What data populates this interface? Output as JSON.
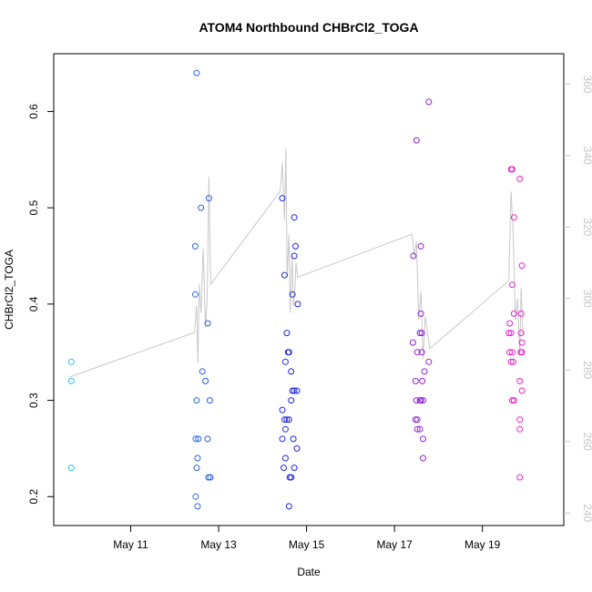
{
  "chart_data": {
    "type": "scatter",
    "title": "ATOM4 Northbound CHBrCl2_TOGA",
    "xlabel": "Date",
    "ylabel": "CHBrCl2_TOGA",
    "x_unit": "days since May 1",
    "xlim": [
      9.25,
      20.85
    ],
    "ylim": [
      0.17,
      0.66
    ],
    "y2lim": [
      236.5,
      368.5
    ],
    "x_ticks": [
      {
        "value": 11,
        "label": "May 11"
      },
      {
        "value": 13,
        "label": "May 13"
      },
      {
        "value": 15,
        "label": "May 15"
      },
      {
        "value": 17,
        "label": "May 17"
      },
      {
        "value": 19,
        "label": "May 19"
      }
    ],
    "y_ticks": [
      0.2,
      0.3,
      0.4,
      0.5,
      0.6
    ],
    "y2_ticks": [
      240,
      260,
      280,
      300,
      320,
      340,
      360
    ],
    "colors": {
      "start": "#33bbee",
      "mid": "#2222dd",
      "end": "#ee22cc",
      "line": "#c8c8c8",
      "right_axis": "#c4c4c4"
    },
    "series": [
      {
        "name": "CHBrCl2_TOGA",
        "points": [
          {
            "x": 9.65,
            "y": 0.34
          },
          {
            "x": 9.65,
            "y": 0.32
          },
          {
            "x": 9.65,
            "y": 0.23
          },
          {
            "x": 12.5,
            "y": 0.64
          },
          {
            "x": 12.47,
            "y": 0.46
          },
          {
            "x": 12.47,
            "y": 0.41
          },
          {
            "x": 12.6,
            "y": 0.5
          },
          {
            "x": 12.78,
            "y": 0.51
          },
          {
            "x": 12.75,
            "y": 0.38
          },
          {
            "x": 12.63,
            "y": 0.33
          },
          {
            "x": 12.7,
            "y": 0.32
          },
          {
            "x": 12.5,
            "y": 0.3
          },
          {
            "x": 12.8,
            "y": 0.3
          },
          {
            "x": 12.48,
            "y": 0.26
          },
          {
            "x": 12.54,
            "y": 0.26
          },
          {
            "x": 12.75,
            "y": 0.26
          },
          {
            "x": 12.52,
            "y": 0.24
          },
          {
            "x": 12.5,
            "y": 0.23
          },
          {
            "x": 12.77,
            "y": 0.22
          },
          {
            "x": 12.81,
            "y": 0.22
          },
          {
            "x": 12.48,
            "y": 0.2
          },
          {
            "x": 12.52,
            "y": 0.19
          },
          {
            "x": 14.45,
            "y": 0.51
          },
          {
            "x": 14.72,
            "y": 0.49
          },
          {
            "x": 14.75,
            "y": 0.46
          },
          {
            "x": 14.72,
            "y": 0.45
          },
          {
            "x": 14.5,
            "y": 0.43
          },
          {
            "x": 14.68,
            "y": 0.41
          },
          {
            "x": 14.8,
            "y": 0.4
          },
          {
            "x": 14.55,
            "y": 0.37
          },
          {
            "x": 14.58,
            "y": 0.35
          },
          {
            "x": 14.6,
            "y": 0.35
          },
          {
            "x": 14.52,
            "y": 0.34
          },
          {
            "x": 14.65,
            "y": 0.33
          },
          {
            "x": 14.68,
            "y": 0.31
          },
          {
            "x": 14.72,
            "y": 0.31
          },
          {
            "x": 14.78,
            "y": 0.31
          },
          {
            "x": 14.65,
            "y": 0.3
          },
          {
            "x": 14.45,
            "y": 0.29
          },
          {
            "x": 14.5,
            "y": 0.28
          },
          {
            "x": 14.55,
            "y": 0.28
          },
          {
            "x": 14.6,
            "y": 0.28
          },
          {
            "x": 14.52,
            "y": 0.27
          },
          {
            "x": 14.45,
            "y": 0.26
          },
          {
            "x": 14.7,
            "y": 0.26
          },
          {
            "x": 14.78,
            "y": 0.25
          },
          {
            "x": 14.52,
            "y": 0.24
          },
          {
            "x": 14.48,
            "y": 0.23
          },
          {
            "x": 14.72,
            "y": 0.23
          },
          {
            "x": 14.62,
            "y": 0.22
          },
          {
            "x": 14.65,
            "y": 0.22
          },
          {
            "x": 14.6,
            "y": 0.19
          },
          {
            "x": 17.78,
            "y": 0.61
          },
          {
            "x": 17.5,
            "y": 0.57
          },
          {
            "x": 17.6,
            "y": 0.46
          },
          {
            "x": 17.43,
            "y": 0.45
          },
          {
            "x": 17.6,
            "y": 0.39
          },
          {
            "x": 17.58,
            "y": 0.37
          },
          {
            "x": 17.62,
            "y": 0.37
          },
          {
            "x": 17.42,
            "y": 0.36
          },
          {
            "x": 17.52,
            "y": 0.35
          },
          {
            "x": 17.62,
            "y": 0.35
          },
          {
            "x": 17.78,
            "y": 0.34
          },
          {
            "x": 17.68,
            "y": 0.33
          },
          {
            "x": 17.48,
            "y": 0.32
          },
          {
            "x": 17.63,
            "y": 0.32
          },
          {
            "x": 17.5,
            "y": 0.3
          },
          {
            "x": 17.58,
            "y": 0.3
          },
          {
            "x": 17.6,
            "y": 0.3
          },
          {
            "x": 17.65,
            "y": 0.3
          },
          {
            "x": 17.48,
            "y": 0.28
          },
          {
            "x": 17.52,
            "y": 0.28
          },
          {
            "x": 17.52,
            "y": 0.27
          },
          {
            "x": 17.58,
            "y": 0.27
          },
          {
            "x": 17.65,
            "y": 0.26
          },
          {
            "x": 17.65,
            "y": 0.24
          },
          {
            "x": 19.65,
            "y": 0.54
          },
          {
            "x": 19.68,
            "y": 0.54
          },
          {
            "x": 19.85,
            "y": 0.53
          },
          {
            "x": 19.72,
            "y": 0.49
          },
          {
            "x": 19.9,
            "y": 0.44
          },
          {
            "x": 19.68,
            "y": 0.42
          },
          {
            "x": 19.72,
            "y": 0.39
          },
          {
            "x": 19.88,
            "y": 0.39
          },
          {
            "x": 19.62,
            "y": 0.38
          },
          {
            "x": 19.6,
            "y": 0.37
          },
          {
            "x": 19.65,
            "y": 0.37
          },
          {
            "x": 19.88,
            "y": 0.37
          },
          {
            "x": 19.9,
            "y": 0.36
          },
          {
            "x": 19.62,
            "y": 0.35
          },
          {
            "x": 19.68,
            "y": 0.35
          },
          {
            "x": 19.87,
            "y": 0.35
          },
          {
            "x": 19.9,
            "y": 0.35
          },
          {
            "x": 19.65,
            "y": 0.34
          },
          {
            "x": 19.7,
            "y": 0.34
          },
          {
            "x": 19.85,
            "y": 0.32
          },
          {
            "x": 19.9,
            "y": 0.31
          },
          {
            "x": 19.68,
            "y": 0.3
          },
          {
            "x": 19.72,
            "y": 0.3
          },
          {
            "x": 19.85,
            "y": 0.28
          },
          {
            "x": 19.85,
            "y": 0.27
          },
          {
            "x": 19.85,
            "y": 0.22
          }
        ]
      },
      {
        "name": "Right axis trace",
        "axis": "right",
        "points": [
          {
            "x": 9.6,
            "y": 278.0
          },
          {
            "x": 12.45,
            "y": 290.5
          },
          {
            "x": 12.5,
            "y": 298.0
          },
          {
            "x": 12.53,
            "y": 282.0
          },
          {
            "x": 12.56,
            "y": 304.0
          },
          {
            "x": 12.6,
            "y": 296.0
          },
          {
            "x": 12.65,
            "y": 314.0
          },
          {
            "x": 12.7,
            "y": 292.0
          },
          {
            "x": 12.74,
            "y": 300.0
          },
          {
            "x": 12.78,
            "y": 334.0
          },
          {
            "x": 12.82,
            "y": 304.0
          },
          {
            "x": 14.4,
            "y": 330.0
          },
          {
            "x": 14.45,
            "y": 338.0
          },
          {
            "x": 14.5,
            "y": 322.0
          },
          {
            "x": 14.53,
            "y": 342.0
          },
          {
            "x": 14.56,
            "y": 306.0
          },
          {
            "x": 14.6,
            "y": 318.0
          },
          {
            "x": 14.63,
            "y": 296.0
          },
          {
            "x": 14.67,
            "y": 312.0
          },
          {
            "x": 14.7,
            "y": 298.0
          },
          {
            "x": 14.73,
            "y": 302.0
          },
          {
            "x": 14.76,
            "y": 310.0
          },
          {
            "x": 14.8,
            "y": 306.0
          },
          {
            "x": 17.4,
            "y": 318.0
          },
          {
            "x": 17.45,
            "y": 312.0
          },
          {
            "x": 17.5,
            "y": 316.0
          },
          {
            "x": 17.55,
            "y": 294.0
          },
          {
            "x": 17.6,
            "y": 302.0
          },
          {
            "x": 17.65,
            "y": 283.0
          },
          {
            "x": 17.7,
            "y": 295.0
          },
          {
            "x": 17.8,
            "y": 286.0
          },
          {
            "x": 19.6,
            "y": 305.0
          },
          {
            "x": 19.65,
            "y": 330.0
          },
          {
            "x": 19.7,
            "y": 318.0
          },
          {
            "x": 19.75,
            "y": 294.0
          },
          {
            "x": 19.8,
            "y": 300.0
          },
          {
            "x": 19.85,
            "y": 284.0
          },
          {
            "x": 19.88,
            "y": 303.0
          },
          {
            "x": 19.92,
            "y": 290.0
          }
        ]
      }
    ]
  }
}
